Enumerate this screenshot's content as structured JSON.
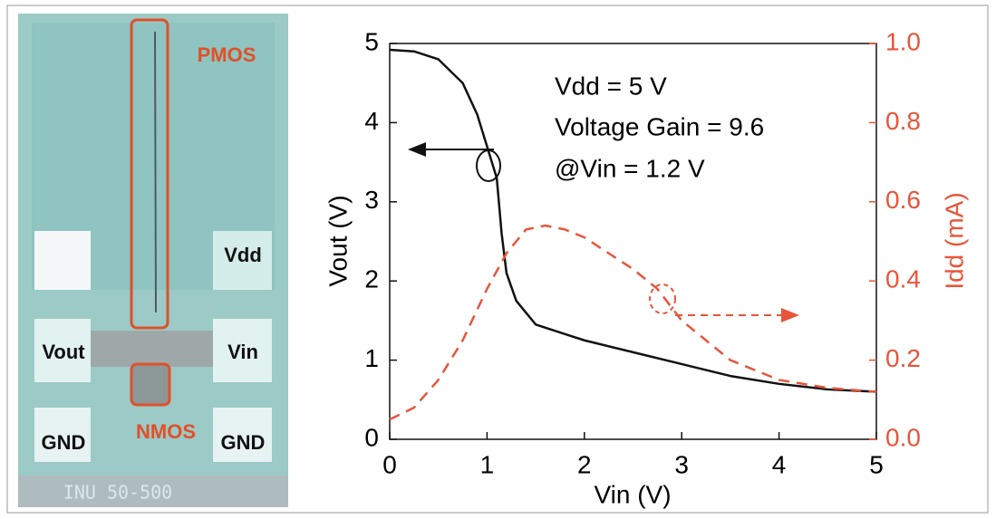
{
  "micrograph": {
    "labels": [
      "PMOS",
      "Vdd",
      "Vout",
      "Vin",
      "GND",
      "NMOS",
      "GND",
      "INU 50-500"
    ]
  },
  "chart_data": {
    "type": "line",
    "x_label": "Vin (V)",
    "y_label": "Vout (V)",
    "y2_label": "Idd (mA)",
    "annotations": [
      "Vdd = 5 V",
      "Voltage Gain = 9.6",
      "@Vin = 1.2 V"
    ],
    "xlim": [
      0,
      5
    ],
    "xticks": [
      0,
      1,
      2,
      3,
      4,
      5
    ],
    "ylim": [
      0,
      5
    ],
    "yticks": [
      0,
      1,
      2,
      3,
      4,
      5
    ],
    "y2lim": [
      0,
      1
    ],
    "y2ticks": [
      {
        "value": 0,
        "label": "0.0"
      },
      0.2,
      0.4,
      0.6,
      0.8,
      {
        "value": 1,
        "label": "1.0"
      }
    ],
    "y2_color": "#e8553a",
    "series": [
      {
        "color": "#111111",
        "dashed": false,
        "x": [
          0,
          0.25,
          0.5,
          0.75,
          0.9,
          1.0,
          1.1,
          1.15,
          1.2,
          1.3,
          1.5,
          2.0,
          2.5,
          3.0,
          3.5,
          4.0,
          4.5,
          5.0
        ],
        "values": [
          4.92,
          4.9,
          4.8,
          4.5,
          4.1,
          3.7,
          3.3,
          2.6,
          2.1,
          1.75,
          1.45,
          1.25,
          1.1,
          0.95,
          0.8,
          0.7,
          0.63,
          0.6
        ]
      },
      {
        "color": "#e8553a",
        "dashed": true,
        "axis": "y2",
        "x": [
          0,
          0.25,
          0.5,
          0.75,
          1.0,
          1.2,
          1.4,
          1.6,
          1.8,
          2.0,
          2.5,
          2.75,
          3.0,
          3.5,
          4.0,
          4.5,
          5.0
        ],
        "values": [
          0.05,
          0.08,
          0.15,
          0.25,
          0.38,
          0.47,
          0.53,
          0.54,
          0.53,
          0.51,
          0.43,
          0.38,
          0.3,
          0.2,
          0.15,
          0.13,
          0.12
        ]
      }
    ]
  }
}
